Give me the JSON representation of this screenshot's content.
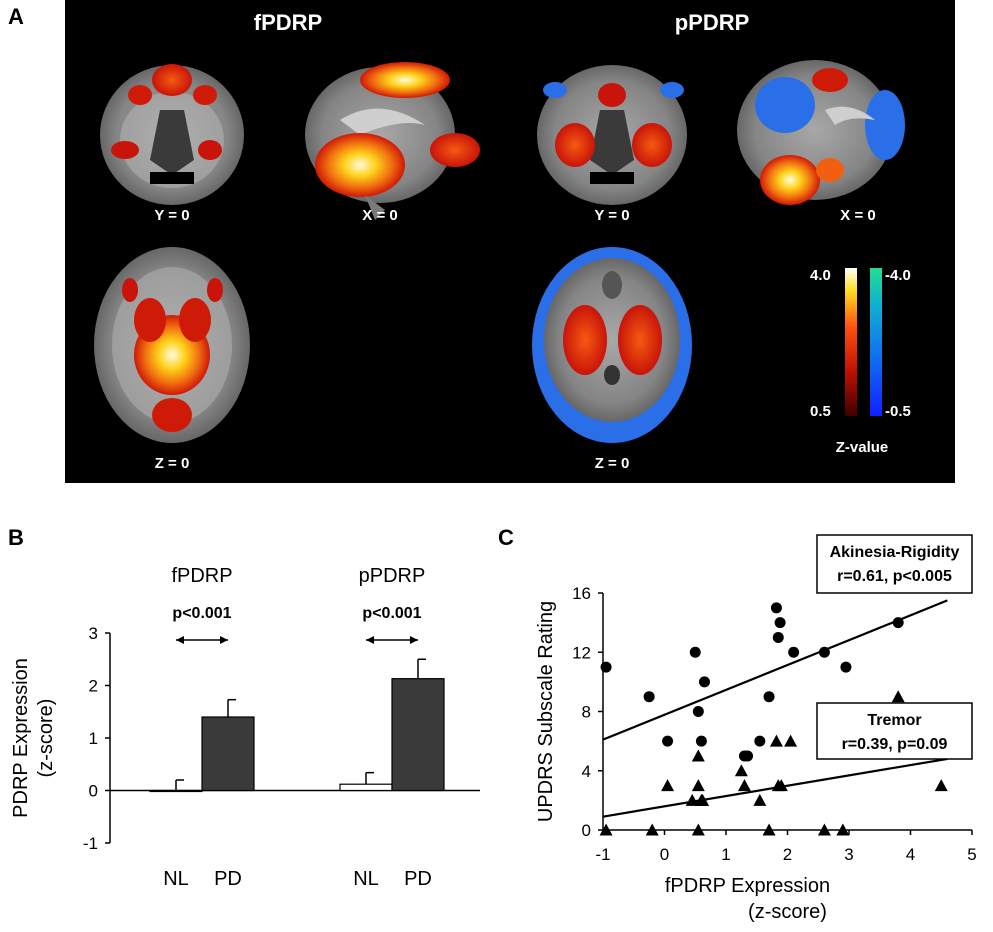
{
  "panel_a": {
    "letter": "A",
    "left_title": "fPDRP",
    "right_title": "pPDRP",
    "slice_labels": {
      "f_coronal": "Y = 0",
      "f_sagittal": "X = 0",
      "f_axial": "Z = 0",
      "p_coronal": "Y = 0",
      "p_sagittal": "X = 0",
      "p_axial": "Z = 0"
    },
    "colorbar": {
      "pos_max": "4.0",
      "pos_min": "0.5",
      "neg_max": "-4.0",
      "neg_min": "-0.5",
      "label": "Z-value"
    },
    "colors": {
      "background": "#000000",
      "warm": "#e0200a",
      "hot": "#ffe020",
      "cool": "#2a6fe8",
      "brain": "#7f7f7f"
    }
  },
  "chart_data": [
    {
      "panel": "B",
      "type": "bar",
      "letter": "B",
      "ylabel_lines": [
        "PDRP Expression",
        "(z-score)"
      ],
      "ylim": [
        -1,
        3
      ],
      "yticks": [
        -1,
        0,
        1,
        2,
        3
      ],
      "groups": [
        {
          "name": "fPDRP",
          "pvalue": "p<0.001",
          "bars": [
            {
              "category": "NL",
              "value": 0.0,
              "error": 0.2,
              "color": "#ffffff"
            },
            {
              "category": "PD",
              "value": 1.4,
              "error": 0.33,
              "color": "#3a3a3a"
            }
          ]
        },
        {
          "name": "pPDRP",
          "pvalue": "p<0.001",
          "bars": [
            {
              "category": "NL",
              "value": 0.12,
              "error": 0.22,
              "color": "#ffffff"
            },
            {
              "category": "PD",
              "value": 2.13,
              "error": 0.37,
              "color": "#3a3a3a"
            }
          ]
        }
      ]
    },
    {
      "panel": "C",
      "type": "scatter",
      "letter": "C",
      "xlabel_lines": [
        "fPDRP Expression",
        "(z-score)"
      ],
      "ylabel": "UPDRS Subscale Rating",
      "xlim": [
        -1,
        5
      ],
      "ylim": [
        0,
        16
      ],
      "xticks": [
        -1,
        0,
        1,
        2,
        3,
        4,
        5
      ],
      "yticks": [
        0,
        4,
        8,
        12,
        16
      ],
      "series": [
        {
          "name": "Akinesia-Rigidity",
          "stat": "r=0.61, p<0.005",
          "marker": "circle",
          "fit": [
            [
              -1,
              6.1
            ],
            [
              4.6,
              15.5
            ]
          ],
          "points": [
            [
              -0.95,
              11
            ],
            [
              -0.25,
              9
            ],
            [
              0.05,
              6
            ],
            [
              0.5,
              12
            ],
            [
              0.55,
              8
            ],
            [
              0.6,
              6
            ],
            [
              0.65,
              10
            ],
            [
              1.3,
              5
            ],
            [
              1.35,
              5
            ],
            [
              1.55,
              6
            ],
            [
              1.7,
              9
            ],
            [
              1.82,
              15
            ],
            [
              1.85,
              13
            ],
            [
              1.88,
              14
            ],
            [
              2.1,
              12
            ],
            [
              2.6,
              12
            ],
            [
              2.95,
              11
            ],
            [
              3.8,
              14
            ]
          ]
        },
        {
          "name": "Tremor",
          "stat": "r=0.39, p=0.09",
          "marker": "triangle",
          "fit": [
            [
              -1,
              0.9
            ],
            [
              4.6,
              4.8
            ]
          ],
          "points": [
            [
              -0.95,
              0
            ],
            [
              -0.2,
              0
            ],
            [
              0.05,
              3
            ],
            [
              0.45,
              2
            ],
            [
              0.55,
              5
            ],
            [
              0.55,
              3
            ],
            [
              0.6,
              2
            ],
            [
              0.62,
              2
            ],
            [
              0.55,
              0
            ],
            [
              1.25,
              4
            ],
            [
              1.3,
              3
            ],
            [
              1.55,
              2
            ],
            [
              1.7,
              0
            ],
            [
              1.82,
              6
            ],
            [
              1.85,
              3
            ],
            [
              1.9,
              3
            ],
            [
              2.05,
              6
            ],
            [
              2.6,
              0
            ],
            [
              2.9,
              0
            ],
            [
              3.8,
              9
            ],
            [
              4.5,
              3
            ]
          ]
        }
      ]
    }
  ]
}
